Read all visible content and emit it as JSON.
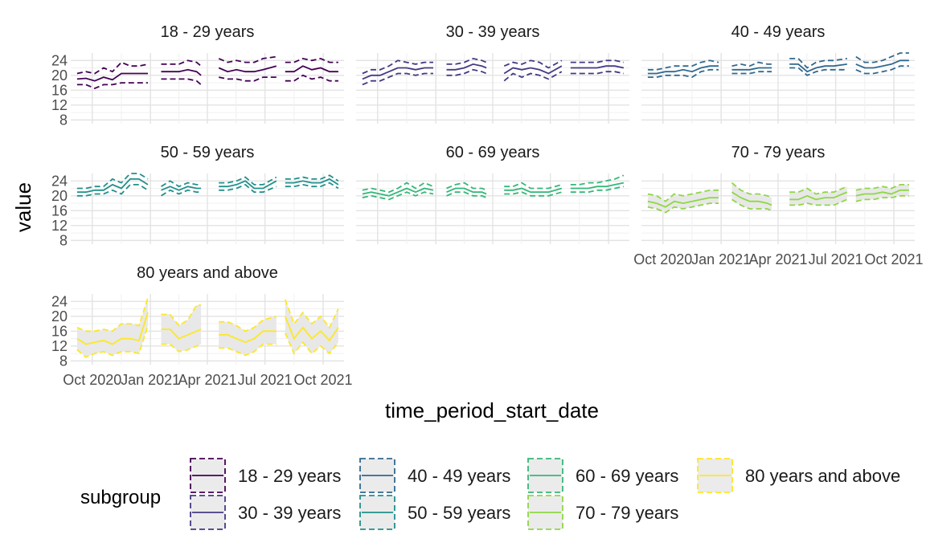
{
  "chart_data": {
    "type": "line",
    "xlabel": "time_period_start_date",
    "ylabel": "value",
    "ylim": [
      7,
      26
    ],
    "yticks": [
      8,
      12,
      16,
      20,
      24
    ],
    "xlim": [
      "2020-08-28",
      "2021-11-03"
    ],
    "xticks": [
      {
        "date": "2020-10-01",
        "label": "Oct 2020"
      },
      {
        "date": "2021-01-01",
        "label": "Jan 2021"
      },
      {
        "date": "2021-04-01",
        "label": "Apr 2021"
      },
      {
        "date": "2021-07-01",
        "label": "Jul 2021"
      },
      {
        "date": "2021-10-01",
        "label": "Oct 2021"
      }
    ],
    "series": [
      {
        "name": "18 - 29 years",
        "color": "#440154",
        "ribbon": false,
        "dates": [
          "2020-09-07",
          "2020-09-21",
          "2020-10-05",
          "2020-10-19",
          "2020-11-02",
          "2020-11-16",
          "2020-11-30",
          "2020-12-14",
          "2020-12-28",
          "2021-01-18",
          "2021-02-01",
          "2021-02-15",
          "2021-03-01",
          "2021-03-15",
          "2021-03-22",
          "2021-04-19",
          "2021-05-03",
          "2021-05-17",
          "2021-05-31",
          "2021-06-14",
          "2021-06-28",
          "2021-07-19",
          "2021-08-02",
          "2021-08-16",
          "2021-08-30",
          "2021-09-13",
          "2021-09-27",
          "2021-10-11",
          "2021-10-25"
        ],
        "gaps_after": [
          8,
          14,
          21
        ],
        "values": [
          19,
          19.2,
          18.5,
          19.5,
          18.8,
          20.5,
          20.5,
          20.5,
          20.5,
          21,
          21,
          21,
          21.5,
          21,
          20,
          22,
          21,
          21.5,
          21,
          21,
          21.5,
          22.5,
          21,
          21,
          22.5,
          21.5,
          22,
          21,
          21
        ],
        "lower": [
          17.5,
          17.5,
          16.5,
          17.5,
          17.5,
          18,
          18,
          18,
          18,
          19,
          19,
          19,
          19,
          18.5,
          17.5,
          19.5,
          19,
          19,
          18.5,
          18.5,
          19.5,
          19.5,
          18.5,
          18.5,
          20,
          19,
          19.5,
          18.5,
          18.5
        ],
        "upper": [
          20.5,
          21,
          20.5,
          22,
          21,
          23.5,
          22.5,
          22.5,
          23,
          23,
          23,
          23,
          24,
          23.5,
          22.5,
          24.5,
          23.5,
          24,
          23.5,
          23.5,
          24.5,
          25,
          23.5,
          23.5,
          24.5,
          24,
          24.5,
          23.5,
          23.5
        ]
      },
      {
        "name": "30 - 39 years",
        "color": "#443A83",
        "ribbon": false,
        "dates": [
          "2020-09-07",
          "2020-09-21",
          "2020-10-05",
          "2020-10-19",
          "2020-11-02",
          "2020-11-16",
          "2020-11-30",
          "2020-12-14",
          "2020-12-28",
          "2021-01-18",
          "2021-02-01",
          "2021-02-15",
          "2021-03-01",
          "2021-03-15",
          "2021-03-22",
          "2021-04-19",
          "2021-05-03",
          "2021-05-17",
          "2021-05-31",
          "2021-06-14",
          "2021-06-28",
          "2021-07-19",
          "2021-08-02",
          "2021-08-16",
          "2021-08-30",
          "2021-09-13",
          "2021-09-27",
          "2021-10-11",
          "2021-10-25"
        ],
        "gaps_after": [
          8,
          14,
          21
        ],
        "values": [
          19,
          20,
          20,
          21,
          22,
          22,
          21.5,
          22,
          22,
          21.5,
          21.5,
          22,
          23,
          22.5,
          22,
          20.5,
          22,
          21.5,
          22,
          21.5,
          20.5,
          22.5,
          22,
          22,
          22,
          22,
          22.5,
          22.5,
          22
        ],
        "lower": [
          17.5,
          18.5,
          18.5,
          19.5,
          20.5,
          20.5,
          20,
          20.5,
          20.5,
          20,
          20,
          20.5,
          21.5,
          21,
          20.5,
          18.5,
          20.5,
          19.5,
          20.5,
          20,
          19,
          21,
          20.5,
          20.5,
          20.5,
          20.5,
          21,
          21,
          20.5
        ],
        "upper": [
          20.5,
          21.5,
          21.5,
          22.5,
          24,
          23.5,
          23,
          23.5,
          23.5,
          23,
          23,
          23.5,
          24.5,
          24,
          23.5,
          22.5,
          23.5,
          23,
          24,
          23.5,
          22,
          24,
          23.5,
          23.5,
          23.5,
          23.5,
          24,
          24,
          23.5
        ]
      },
      {
        "name": "40 - 49 years",
        "color": "#31688E",
        "ribbon": false,
        "dates": [
          "2020-09-07",
          "2020-09-21",
          "2020-10-05",
          "2020-10-19",
          "2020-11-02",
          "2020-11-16",
          "2020-11-30",
          "2020-12-14",
          "2020-12-28",
          "2021-01-18",
          "2021-02-01",
          "2021-02-15",
          "2021-03-01",
          "2021-03-15",
          "2021-03-22",
          "2021-04-19",
          "2021-05-03",
          "2021-05-17",
          "2021-05-31",
          "2021-06-14",
          "2021-06-28",
          "2021-07-19",
          "2021-08-02",
          "2021-08-16",
          "2021-08-30",
          "2021-09-13",
          "2021-09-27",
          "2021-10-11",
          "2021-10-25"
        ],
        "gaps_after": [
          8,
          14,
          21
        ],
        "values": [
          20.5,
          20.5,
          21,
          21,
          21.5,
          21,
          22,
          22.5,
          22.5,
          21.5,
          21.5,
          21.5,
          22,
          22,
          22,
          23,
          23,
          21,
          22,
          22.5,
          22.5,
          23,
          23,
          22,
          22,
          22.5,
          23,
          24,
          24
        ],
        "lower": [
          19.5,
          19.5,
          20,
          20,
          20,
          19.5,
          21,
          21.5,
          21.5,
          20.5,
          20.5,
          20.5,
          21,
          21,
          21,
          22,
          22,
          20,
          21,
          21.5,
          21.5,
          21.5,
          21.5,
          20.5,
          20.5,
          21,
          21.5,
          22.5,
          22.5
        ],
        "upper": [
          21.5,
          21.5,
          22,
          22.5,
          22.5,
          22.5,
          23.5,
          24,
          23.5,
          22.5,
          23,
          22.5,
          23.5,
          23,
          23,
          24.5,
          24.5,
          22,
          23.5,
          24,
          24,
          24.5,
          25,
          23.5,
          23.5,
          24,
          25,
          26,
          26
        ]
      },
      {
        "name": "50 - 59 years",
        "color": "#21908C",
        "ribbon": false,
        "dates": [
          "2020-09-07",
          "2020-09-21",
          "2020-10-05",
          "2020-10-19",
          "2020-11-02",
          "2020-11-16",
          "2020-11-30",
          "2020-12-14",
          "2020-12-28",
          "2021-01-18",
          "2021-02-01",
          "2021-02-15",
          "2021-03-01",
          "2021-03-15",
          "2021-03-22",
          "2021-04-19",
          "2021-05-03",
          "2021-05-17",
          "2021-05-31",
          "2021-06-14",
          "2021-06-28",
          "2021-07-19",
          "2021-08-02",
          "2021-08-16",
          "2021-08-30",
          "2021-09-13",
          "2021-09-27",
          "2021-10-11",
          "2021-10-25"
        ],
        "gaps_after": [
          8,
          14,
          21
        ],
        "values": [
          21,
          21,
          21.5,
          21.5,
          23,
          22,
          24.5,
          24.5,
          23,
          21.5,
          22.5,
          21.5,
          22.5,
          22,
          22,
          22.5,
          22.5,
          23,
          24,
          22,
          22,
          24,
          23.5,
          23.5,
          24,
          23.5,
          23.5,
          24.5,
          23
        ],
        "lower": [
          20,
          20,
          20.5,
          20.5,
          21.5,
          20.5,
          23,
          23,
          21.5,
          20,
          21.5,
          20.5,
          21.5,
          21,
          21,
          21.5,
          21.5,
          22,
          23,
          21,
          21,
          22.5,
          22.5,
          22.5,
          23,
          22.5,
          22.5,
          23.5,
          22
        ],
        "upper": [
          22,
          22,
          22.5,
          22.5,
          24.5,
          23.5,
          26,
          26,
          24.5,
          22.5,
          24,
          22.5,
          23.5,
          23,
          23,
          23.5,
          23.5,
          24,
          25,
          23,
          23,
          25,
          24.5,
          24.5,
          25,
          24.5,
          24.5,
          25.5,
          24
        ]
      },
      {
        "name": "60 - 69 years",
        "color": "#35B779",
        "ribbon": false,
        "dates": [
          "2020-09-07",
          "2020-09-21",
          "2020-10-05",
          "2020-10-19",
          "2020-11-02",
          "2020-11-16",
          "2020-11-30",
          "2020-12-14",
          "2020-12-28",
          "2021-01-18",
          "2021-02-01",
          "2021-02-15",
          "2021-03-01",
          "2021-03-15",
          "2021-03-22",
          "2021-04-19",
          "2021-05-03",
          "2021-05-17",
          "2021-05-31",
          "2021-06-14",
          "2021-06-28",
          "2021-07-19",
          "2021-08-02",
          "2021-08-16",
          "2021-08-30",
          "2021-09-13",
          "2021-09-27",
          "2021-10-11",
          "2021-10-25"
        ],
        "gaps_after": [
          8,
          14,
          21
        ],
        "values": [
          20.5,
          21,
          20.5,
          20,
          21,
          22,
          21,
          22,
          21.5,
          21,
          22,
          22,
          21,
          21,
          20.5,
          21.5,
          21.5,
          22,
          21,
          21,
          21,
          22,
          22,
          22,
          22,
          22.5,
          22.5,
          23,
          23.5
        ],
        "lower": [
          19.5,
          20,
          19.5,
          19,
          20,
          21,
          20,
          21,
          20.5,
          20,
          21,
          21,
          20,
          20,
          19.5,
          20.5,
          20.5,
          21,
          20,
          20,
          20,
          21,
          21,
          21,
          21,
          21.5,
          21.5,
          22,
          22.5
        ],
        "upper": [
          21.5,
          22,
          21.5,
          21,
          22,
          23.5,
          22,
          23.5,
          22.5,
          22,
          23,
          23.5,
          22,
          22,
          21.5,
          22.5,
          22.5,
          23.5,
          22,
          22,
          22,
          23,
          23,
          23,
          23.5,
          23.5,
          24,
          24.5,
          25.5
        ]
      },
      {
        "name": "70 - 79 years",
        "color": "#8FD744",
        "ribbon": true,
        "dates": [
          "2020-09-07",
          "2020-09-21",
          "2020-10-05",
          "2020-10-19",
          "2020-11-02",
          "2020-11-16",
          "2020-11-30",
          "2020-12-14",
          "2020-12-28",
          "2021-01-18",
          "2021-02-01",
          "2021-02-15",
          "2021-03-01",
          "2021-03-15",
          "2021-03-22",
          "2021-04-19",
          "2021-05-03",
          "2021-05-17",
          "2021-05-31",
          "2021-06-14",
          "2021-06-28",
          "2021-07-19",
          "2021-08-02",
          "2021-08-16",
          "2021-08-30",
          "2021-09-13",
          "2021-09-27",
          "2021-10-11",
          "2021-10-25"
        ],
        "gaps_after": [
          8,
          14,
          21
        ],
        "values": [
          18.5,
          18,
          17,
          18.5,
          18,
          18.5,
          19,
          19.5,
          19.5,
          21,
          19.5,
          18.5,
          18.5,
          18,
          17.5,
          19,
          19,
          20,
          19,
          19.5,
          19.5,
          21,
          20,
          20.5,
          20.5,
          21,
          20.5,
          21.5,
          21.5
        ],
        "lower": [
          17,
          16.5,
          15.5,
          17,
          16.5,
          17,
          17.5,
          18,
          18,
          19,
          17.5,
          16.5,
          16.5,
          16.5,
          16,
          17.5,
          17.5,
          18,
          17.5,
          17.5,
          17.5,
          19,
          18.5,
          19,
          19,
          19.5,
          19.5,
          20,
          20
        ],
        "upper": [
          20.5,
          20,
          18.5,
          20.5,
          20,
          20.5,
          21,
          21.5,
          21.5,
          23.5,
          21.5,
          20.5,
          20.5,
          20,
          19.5,
          21,
          21,
          22,
          20.5,
          21,
          21,
          22.5,
          21.5,
          22,
          22,
          22.5,
          22,
          23,
          23
        ]
      },
      {
        "name": "80 years and above",
        "color": "#FDE725",
        "ribbon": true,
        "dates": [
          "2020-09-07",
          "2020-09-21",
          "2020-10-05",
          "2020-10-19",
          "2020-11-02",
          "2020-11-16",
          "2020-11-30",
          "2020-12-14",
          "2020-12-28",
          "2021-01-18",
          "2021-02-01",
          "2021-02-15",
          "2021-03-01",
          "2021-03-15",
          "2021-03-22",
          "2021-04-19",
          "2021-05-03",
          "2021-05-17",
          "2021-05-31",
          "2021-06-14",
          "2021-06-28",
          "2021-07-19",
          "2021-08-02",
          "2021-08-16",
          "2021-08-30",
          "2021-09-13",
          "2021-09-27",
          "2021-10-11",
          "2021-10-25"
        ],
        "gaps_after": [
          8,
          14,
          21
        ],
        "values": [
          14,
          12.5,
          13,
          13.5,
          12.5,
          14,
          14,
          13.5,
          21,
          16.5,
          16.5,
          14,
          15,
          16,
          16.5,
          15,
          15,
          14,
          13,
          14,
          16,
          16,
          20,
          14,
          17,
          14,
          16,
          13.5,
          17
        ],
        "lower": [
          11,
          9,
          10,
          10.5,
          9.5,
          10.5,
          10.5,
          10,
          17.5,
          12.5,
          12.5,
          10.5,
          11,
          12,
          12.5,
          11.5,
          11.5,
          10.5,
          9.5,
          10.5,
          12.5,
          12.5,
          15.5,
          10,
          13,
          10,
          12,
          10,
          13
        ],
        "upper": [
          17,
          16,
          16,
          16.5,
          16,
          18,
          18,
          17.5,
          25,
          20.5,
          20.5,
          17.5,
          19,
          23,
          23,
          18.5,
          18.5,
          17.5,
          16,
          17,
          19,
          20,
          24.5,
          18,
          21,
          18,
          20,
          17,
          22
        ]
      }
    ],
    "legend": {
      "title": "subgroup",
      "position": "bottom",
      "entries": [
        "18 - 29 years",
        "30 - 39 years",
        "40 - 49 years",
        "50 - 59 years",
        "60 - 69 years",
        "70 - 79 years",
        "80 years and above"
      ]
    },
    "grid": true
  }
}
